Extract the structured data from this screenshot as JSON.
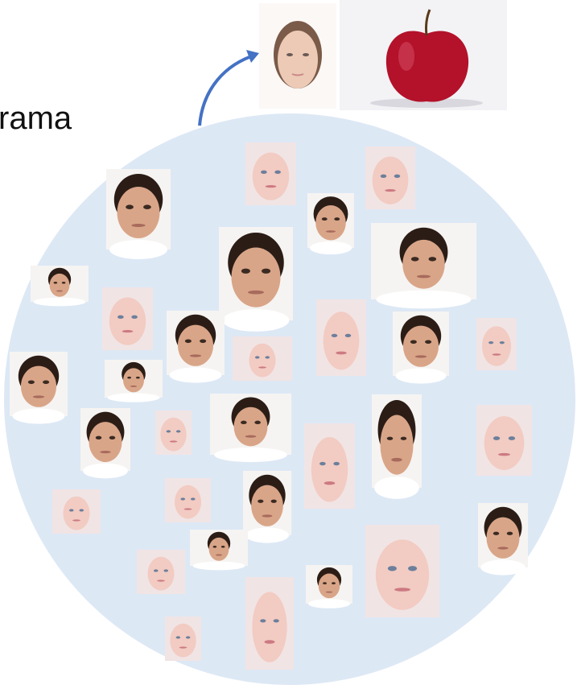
{
  "caption": {
    "text": "rama"
  }
}
